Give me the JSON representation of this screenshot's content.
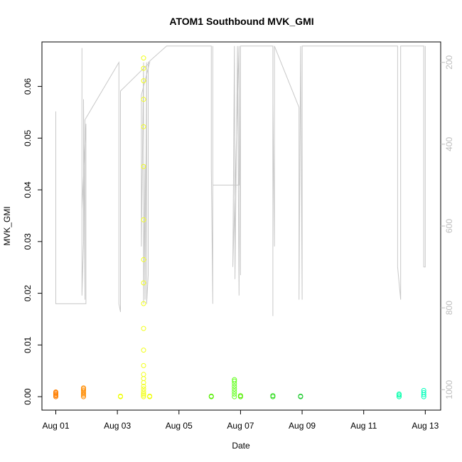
{
  "chart_data": {
    "type": "scatter",
    "title": "ATOM1 Southbound MVK_GMI",
    "xlabel": "Date",
    "ylabel": "MVK_GMI",
    "x_ticks": [
      "Aug 01",
      "Aug 03",
      "Aug 05",
      "Aug 07",
      "Aug 09",
      "Aug 11",
      "Aug 13"
    ],
    "x_tick_days": [
      1,
      3,
      5,
      7,
      9,
      11,
      13
    ],
    "xlim_days": [
      0.55,
      13.5
    ],
    "y_ticks": [
      "0.00",
      "0.01",
      "0.02",
      "0.03",
      "0.04",
      "0.05",
      "0.06"
    ],
    "y_tick_values": [
      0,
      0.01,
      0.02,
      0.03,
      0.04,
      0.05,
      0.06
    ],
    "ylim": [
      -0.0026,
      0.0686
    ],
    "y2_ticks": [
      "200",
      "400",
      "600",
      "800",
      "1000"
    ],
    "y2_tick_values": [
      200,
      400,
      600,
      800,
      1000
    ],
    "y2lim": [
      1050,
      150
    ],
    "y2_inverted": true,
    "grid": false,
    "legend": "none",
    "colors": {
      "line": "#c8c8c8",
      "points": [
        "#ff7f00",
        "#ff8c00",
        "#eeff00",
        "#f2ff1a",
        "#55ee00",
        "#66ff22",
        "#33dd22",
        "#22cc33",
        "#00ffaa",
        "#00ffbb"
      ],
      "axis": "#000000",
      "secondary_axis": "#bdbdbd"
    },
    "series": [
      {
        "values": [
          {
            "day": 1.0,
            "y": [
              0.0,
              0.0002,
              0.0004,
              0.0006,
              0.0008,
              0.0009
            ],
            "color": "#ff7f00"
          },
          {
            "day": 1.9,
            "y": [
              0.0,
              0.0003,
              0.0006,
              0.0009,
              0.0012,
              0.0015,
              0.0017
            ],
            "color": "#ff8c00"
          },
          {
            "day": 3.1,
            "y": [
              0.0,
              0.0001
            ],
            "color": "#eeff00"
          },
          {
            "day": 3.85,
            "y": [
              0.0,
              0.0003,
              0.0006,
              0.001,
              0.0015,
              0.002,
              0.0027,
              0.0035,
              0.0043,
              0.006,
              0.009,
              0.0132,
              0.018,
              0.022,
              0.0265,
              0.0342,
              0.0445,
              0.0522,
              0.0575,
              0.0611,
              0.0635,
              0.0655
            ],
            "color": "#f2ff1a"
          },
          {
            "day": 4.05,
            "y": [
              0.0,
              0.0001
            ],
            "color": "#eeff00"
          },
          {
            "day": 6.05,
            "y": [
              0.0,
              0.0001
            ],
            "color": "#55ee00"
          },
          {
            "day": 6.8,
            "y": [
              0.0,
              0.0005,
              0.001,
              0.0015,
              0.002,
              0.0025,
              0.003,
              0.0033
            ],
            "color": "#66ff22"
          },
          {
            "day": 7.0,
            "y": [
              0.0,
              0.0002
            ],
            "color": "#55ee00"
          },
          {
            "day": 8.05,
            "y": [
              0.0,
              0.0002
            ],
            "color": "#33dd22"
          },
          {
            "day": 8.95,
            "y": [
              0.0,
              0.0001
            ],
            "color": "#22cc33"
          },
          {
            "day": 12.15,
            "y": [
              0.0,
              0.0003,
              0.0005
            ],
            "color": "#00ffaa"
          },
          {
            "day": 12.95,
            "y": [
              0.0,
              0.0004,
              0.0008,
              0.0012
            ],
            "color": "#00ffbb"
          }
        ]
      },
      {
        "axis": "right",
        "line": [
          [
            1.0,
            420
          ],
          [
            1.0,
            320
          ],
          [
            1.0,
            790
          ],
          [
            1.98,
            790
          ],
          [
            1.98,
            350
          ],
          [
            1.85,
            560
          ],
          [
            1.85,
            165
          ],
          [
            1.85,
            770
          ],
          [
            1.9,
            640
          ],
          [
            1.9,
            290
          ],
          [
            1.95,
            780
          ],
          [
            1.95,
            340
          ],
          [
            3.05,
            200
          ],
          [
            3.05,
            790
          ],
          [
            3.1,
            810
          ],
          [
            3.1,
            270
          ],
          [
            4.05,
            200
          ],
          [
            3.78,
            280
          ],
          [
            3.78,
            650
          ],
          [
            3.85,
            200
          ],
          [
            3.85,
            790
          ],
          [
            3.9,
            450
          ],
          [
            3.9,
            780
          ],
          [
            3.95,
            200
          ],
          [
            3.95,
            790
          ],
          [
            4.0,
            720
          ],
          [
            4.0,
            200
          ],
          [
            4.6,
            160
          ],
          [
            6.05,
            160
          ],
          [
            6.05,
            460
          ],
          [
            6.1,
            790
          ],
          [
            6.1,
            160
          ],
          [
            6.1,
            500
          ],
          [
            6.95,
            500
          ],
          [
            6.95,
            160
          ],
          [
            6.75,
            700
          ],
          [
            6.8,
            160
          ],
          [
            6.82,
            730
          ],
          [
            6.9,
            160
          ],
          [
            6.95,
            770
          ],
          [
            7.0,
            160
          ],
          [
            7.0,
            720
          ],
          [
            7.0,
            160
          ],
          [
            8.05,
            160
          ],
          [
            8.05,
            820
          ],
          [
            8.05,
            300
          ],
          [
            8.1,
            650
          ],
          [
            8.1,
            160
          ],
          [
            8.9,
            310
          ],
          [
            8.9,
            780
          ],
          [
            8.95,
            160
          ],
          [
            9.0,
            780
          ],
          [
            9.0,
            160
          ],
          [
            12.1,
            160
          ],
          [
            12.1,
            700
          ],
          [
            12.2,
            780
          ],
          [
            12.2,
            160
          ],
          [
            12.95,
            160
          ],
          [
            12.95,
            700
          ],
          [
            13.0,
            700
          ],
          [
            13.0,
            160
          ]
        ]
      }
    ]
  }
}
